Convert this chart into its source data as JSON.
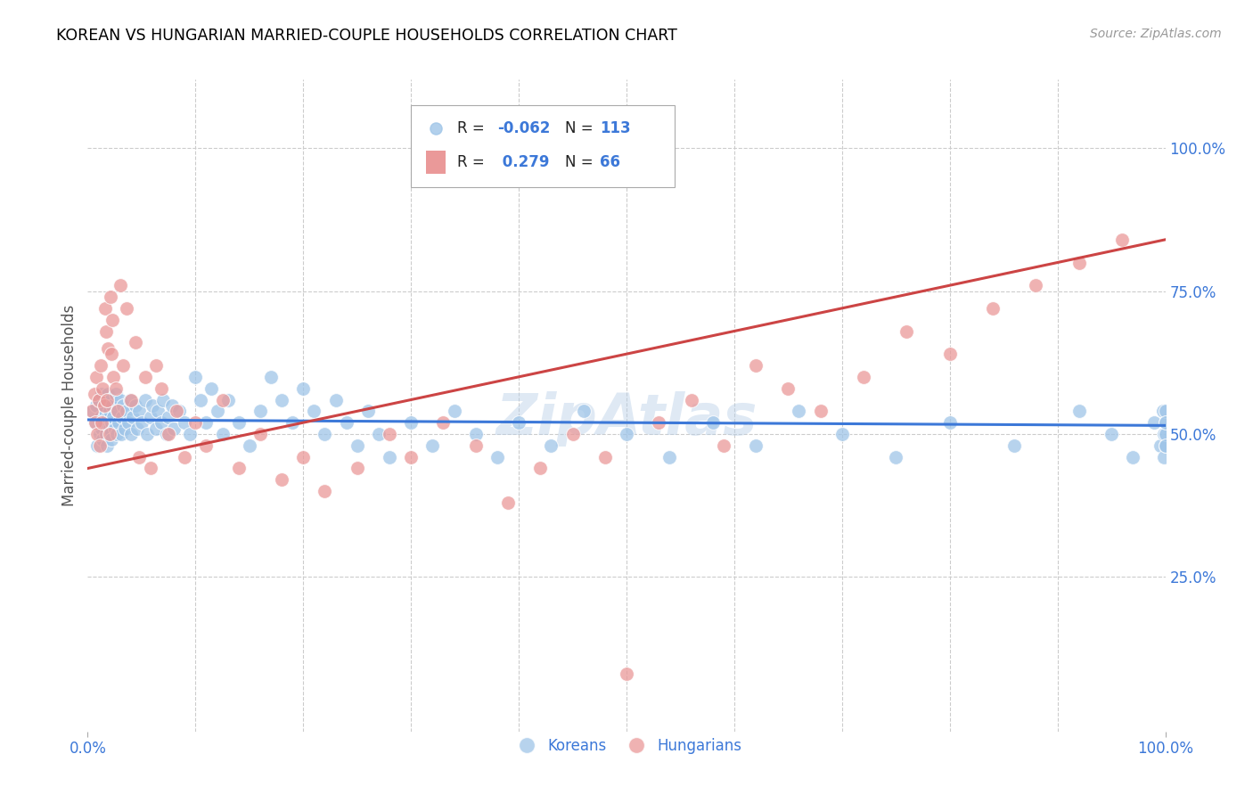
{
  "title": "KOREAN VS HUNGARIAN MARRIED-COUPLE HOUSEHOLDS CORRELATION CHART",
  "source": "Source: ZipAtlas.com",
  "ylabel": "Married-couple Households",
  "xlim": [
    0.0,
    1.0
  ],
  "ylim": [
    -0.02,
    1.12
  ],
  "yticks_right": [
    0.25,
    0.5,
    0.75,
    1.0
  ],
  "ytick_labels_right": [
    "25.0%",
    "50.0%",
    "75.0%",
    "100.0%"
  ],
  "korean_color": "#9fc5e8",
  "hungarian_color": "#ea9999",
  "korean_line_color": "#3c78d8",
  "hungarian_line_color": "#cc4444",
  "legend_korean_label": "Koreans",
  "legend_hungarian_label": "Hungarians",
  "korean_R": -0.062,
  "korean_N": 113,
  "hungarian_R": 0.279,
  "hungarian_N": 66,
  "watermark": "ZipAtlas",
  "background_color": "#ffffff",
  "grid_color": "#cccccc",
  "title_color": "#000000",
  "source_color": "#999999",
  "axis_label_color": "#3c78d8",
  "legend_text_color": "#3c78d8",
  "axis_tick_color": "#3c78d8",
  "korean_x": [
    0.005,
    0.007,
    0.008,
    0.009,
    0.01,
    0.011,
    0.012,
    0.013,
    0.013,
    0.014,
    0.015,
    0.015,
    0.016,
    0.017,
    0.017,
    0.018,
    0.019,
    0.019,
    0.02,
    0.02,
    0.021,
    0.021,
    0.022,
    0.022,
    0.023,
    0.024,
    0.025,
    0.026,
    0.027,
    0.028,
    0.029,
    0.03,
    0.031,
    0.032,
    0.033,
    0.034,
    0.036,
    0.038,
    0.039,
    0.04,
    0.042,
    0.044,
    0.046,
    0.048,
    0.05,
    0.053,
    0.055,
    0.058,
    0.06,
    0.063,
    0.065,
    0.068,
    0.07,
    0.073,
    0.075,
    0.078,
    0.08,
    0.085,
    0.09,
    0.095,
    0.1,
    0.105,
    0.11,
    0.115,
    0.12,
    0.125,
    0.13,
    0.14,
    0.15,
    0.16,
    0.17,
    0.18,
    0.19,
    0.2,
    0.21,
    0.22,
    0.23,
    0.24,
    0.25,
    0.26,
    0.27,
    0.28,
    0.3,
    0.32,
    0.34,
    0.36,
    0.38,
    0.4,
    0.43,
    0.46,
    0.5,
    0.54,
    0.58,
    0.62,
    0.66,
    0.7,
    0.75,
    0.8,
    0.86,
    0.92,
    0.95,
    0.97,
    0.99,
    0.995,
    0.998,
    0.999,
    0.999,
    1.0,
    1.0,
    1.0,
    1.0,
    1.0,
    1.0
  ],
  "korean_y": [
    0.54,
    0.52,
    0.55,
    0.48,
    0.56,
    0.5,
    0.53,
    0.51,
    0.57,
    0.49,
    0.55,
    0.52,
    0.54,
    0.5,
    0.56,
    0.48,
    0.53,
    0.57,
    0.51,
    0.54,
    0.5,
    0.56,
    0.52,
    0.49,
    0.55,
    0.53,
    0.51,
    0.57,
    0.5,
    0.54,
    0.52,
    0.56,
    0.5,
    0.53,
    0.55,
    0.51,
    0.54,
    0.52,
    0.56,
    0.5,
    0.53,
    0.55,
    0.51,
    0.54,
    0.52,
    0.56,
    0.5,
    0.53,
    0.55,
    0.51,
    0.54,
    0.52,
    0.56,
    0.5,
    0.53,
    0.55,
    0.51,
    0.54,
    0.52,
    0.5,
    0.6,
    0.56,
    0.52,
    0.58,
    0.54,
    0.5,
    0.56,
    0.52,
    0.48,
    0.54,
    0.6,
    0.56,
    0.52,
    0.58,
    0.54,
    0.5,
    0.56,
    0.52,
    0.48,
    0.54,
    0.5,
    0.46,
    0.52,
    0.48,
    0.54,
    0.5,
    0.46,
    0.52,
    0.48,
    0.54,
    0.5,
    0.46,
    0.52,
    0.48,
    0.54,
    0.5,
    0.46,
    0.52,
    0.48,
    0.54,
    0.5,
    0.46,
    0.52,
    0.48,
    0.54,
    0.5,
    0.46,
    0.52,
    0.48,
    0.54,
    0.5,
    0.52,
    0.48
  ],
  "hungarian_x": [
    0.004,
    0.006,
    0.007,
    0.008,
    0.009,
    0.01,
    0.011,
    0.012,
    0.013,
    0.014,
    0.015,
    0.016,
    0.017,
    0.018,
    0.019,
    0.02,
    0.021,
    0.022,
    0.023,
    0.024,
    0.026,
    0.028,
    0.03,
    0.033,
    0.036,
    0.04,
    0.044,
    0.048,
    0.053,
    0.058,
    0.063,
    0.068,
    0.075,
    0.082,
    0.09,
    0.1,
    0.11,
    0.125,
    0.14,
    0.16,
    0.18,
    0.2,
    0.22,
    0.25,
    0.28,
    0.3,
    0.33,
    0.36,
    0.39,
    0.42,
    0.45,
    0.48,
    0.5,
    0.53,
    0.56,
    0.59,
    0.62,
    0.65,
    0.68,
    0.72,
    0.76,
    0.8,
    0.84,
    0.88,
    0.92,
    0.96
  ],
  "hungarian_y": [
    0.54,
    0.57,
    0.52,
    0.6,
    0.5,
    0.56,
    0.48,
    0.62,
    0.52,
    0.58,
    0.55,
    0.72,
    0.68,
    0.56,
    0.65,
    0.5,
    0.74,
    0.64,
    0.7,
    0.6,
    0.58,
    0.54,
    0.76,
    0.62,
    0.72,
    0.56,
    0.66,
    0.46,
    0.6,
    0.44,
    0.62,
    0.58,
    0.5,
    0.54,
    0.46,
    0.52,
    0.48,
    0.56,
    0.44,
    0.5,
    0.42,
    0.46,
    0.4,
    0.44,
    0.5,
    0.46,
    0.52,
    0.48,
    0.38,
    0.44,
    0.5,
    0.46,
    0.08,
    0.52,
    0.56,
    0.48,
    0.62,
    0.58,
    0.54,
    0.6,
    0.68,
    0.64,
    0.72,
    0.76,
    0.8,
    0.84
  ]
}
